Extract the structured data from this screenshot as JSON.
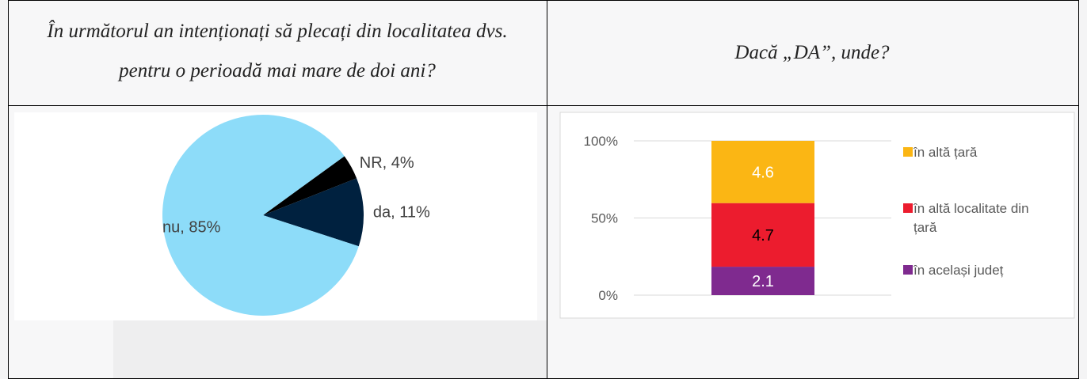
{
  "table": {
    "headers": [
      "În următorul an intenționați să plecați din localitatea dvs. pentru o perioadă mai mare de doi ani?",
      "Dacă „DA”, unde?"
    ]
  },
  "chart_data": [
    {
      "type": "pie",
      "categories": [
        "NR",
        "da",
        "nu"
      ],
      "values": [
        4,
        11,
        85
      ],
      "value_labels": [
        "NR, 4%",
        "da, 11%",
        "nu, 85%"
      ],
      "colors": [
        "#000000",
        "#00213f",
        "#8ddcf9"
      ],
      "start_angle": 54
    },
    {
      "type": "bar",
      "stacking": "percent",
      "categories": [
        null
      ],
      "series": [
        {
          "name": "în același județ",
          "color": "#7f2a8f",
          "label_color": "#ffffff",
          "values": [
            2.1
          ]
        },
        {
          "name": "în altă localitate din țară",
          "color": "#ec1c2e",
          "label_color": "#000000",
          "values": [
            4.7
          ]
        },
        {
          "name": "în altă țară",
          "color": "#fbb614",
          "label_color": "#ffffff",
          "values": [
            4.6
          ]
        }
      ],
      "ylim": [
        0,
        100
      ],
      "yticks": [
        {
          "value": 0,
          "label": "0%"
        },
        {
          "value": 50,
          "label": "50%"
        },
        {
          "value": 100,
          "label": "100%"
        }
      ],
      "grid": true,
      "legend": "right"
    }
  ]
}
